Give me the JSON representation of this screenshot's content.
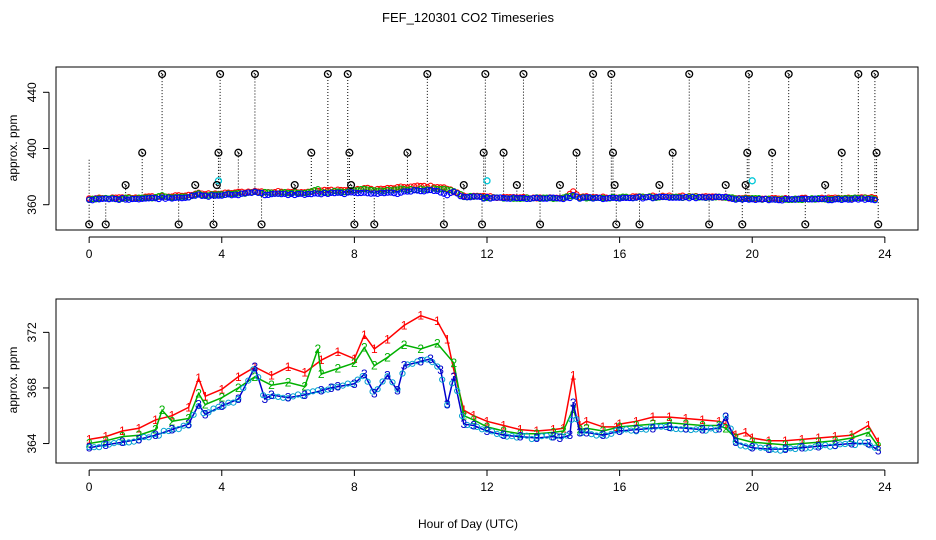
{
  "title": "FEF_120301  CO2 Timeseries",
  "chart_data": [
    {
      "type": "scatter",
      "panel": "top",
      "ylabel": "approx. ppm",
      "xlim": [
        -1,
        25
      ],
      "ylim": [
        342,
        458
      ],
      "xticks": [
        0,
        4,
        8,
        12,
        16,
        20,
        24
      ],
      "yticks": [
        360,
        400,
        440
      ],
      "colors": {
        "series1": "#ff0000",
        "series2": "#00b000",
        "series3": "#0000ff",
        "alt": "#00c8d8",
        "flag": "#000000"
      },
      "spikes": [
        {
          "x": 0.0,
          "y": 346,
          "base": 392
        },
        {
          "x": 0.5,
          "y": 346,
          "base": 363
        },
        {
          "x": 1.1,
          "y": 374,
          "base": 364
        },
        {
          "x": 1.6,
          "y": 397,
          "base": 364
        },
        {
          "x": 2.2,
          "y": 453,
          "base": 364
        },
        {
          "x": 2.7,
          "y": 346,
          "base": 365
        },
        {
          "x": 3.2,
          "y": 374,
          "base": 365
        },
        {
          "x": 3.75,
          "y": 346,
          "base": 367
        },
        {
          "x": 3.85,
          "y": 374,
          "base": 367
        },
        {
          "x": 3.9,
          "y": 397,
          "base": 367
        },
        {
          "x": 3.95,
          "y": 453,
          "base": 367
        },
        {
          "x": 4.5,
          "y": 397,
          "base": 368
        },
        {
          "x": 5.0,
          "y": 453,
          "base": 368
        },
        {
          "x": 5.2,
          "y": 346,
          "base": 368
        },
        {
          "x": 6.2,
          "y": 374,
          "base": 368
        },
        {
          "x": 6.7,
          "y": 397,
          "base": 369
        },
        {
          "x": 7.2,
          "y": 453,
          "base": 369
        },
        {
          "x": 7.8,
          "y": 453,
          "base": 369
        },
        {
          "x": 7.85,
          "y": 397,
          "base": 369
        },
        {
          "x": 7.9,
          "y": 374,
          "base": 369
        },
        {
          "x": 8.0,
          "y": 346,
          "base": 369
        },
        {
          "x": 8.6,
          "y": 346,
          "base": 371
        },
        {
          "x": 9.6,
          "y": 397,
          "base": 372
        },
        {
          "x": 10.2,
          "y": 453,
          "base": 372
        },
        {
          "x": 10.7,
          "y": 346,
          "base": 371
        },
        {
          "x": 11.3,
          "y": 374,
          "base": 366
        },
        {
          "x": 11.85,
          "y": 346,
          "base": 365
        },
        {
          "x": 11.9,
          "y": 397,
          "base": 365
        },
        {
          "x": 11.95,
          "y": 453,
          "base": 365
        },
        {
          "x": 12.5,
          "y": 397,
          "base": 365
        },
        {
          "x": 12.9,
          "y": 374,
          "base": 365
        },
        {
          "x": 13.1,
          "y": 453,
          "base": 365
        },
        {
          "x": 13.6,
          "y": 346,
          "base": 365
        },
        {
          "x": 14.2,
          "y": 374,
          "base": 365
        },
        {
          "x": 14.7,
          "y": 397,
          "base": 365
        },
        {
          "x": 15.2,
          "y": 453,
          "base": 365
        },
        {
          "x": 15.75,
          "y": 453,
          "base": 365
        },
        {
          "x": 15.8,
          "y": 397,
          "base": 365
        },
        {
          "x": 15.85,
          "y": 374,
          "base": 365
        },
        {
          "x": 15.9,
          "y": 346,
          "base": 365
        },
        {
          "x": 16.6,
          "y": 346,
          "base": 365
        },
        {
          "x": 17.2,
          "y": 374,
          "base": 365
        },
        {
          "x": 17.6,
          "y": 397,
          "base": 365
        },
        {
          "x": 18.1,
          "y": 453,
          "base": 365
        },
        {
          "x": 18.7,
          "y": 346,
          "base": 365
        },
        {
          "x": 19.2,
          "y": 374,
          "base": 365
        },
        {
          "x": 19.7,
          "y": 346,
          "base": 364
        },
        {
          "x": 19.8,
          "y": 374,
          "base": 364
        },
        {
          "x": 19.85,
          "y": 397,
          "base": 364
        },
        {
          "x": 19.9,
          "y": 453,
          "base": 364
        },
        {
          "x": 20.6,
          "y": 397,
          "base": 364
        },
        {
          "x": 21.1,
          "y": 453,
          "base": 364
        },
        {
          "x": 21.6,
          "y": 346,
          "base": 364
        },
        {
          "x": 22.2,
          "y": 374,
          "base": 364
        },
        {
          "x": 22.7,
          "y": 397,
          "base": 364
        },
        {
          "x": 23.2,
          "y": 453,
          "base": 364
        },
        {
          "x": 23.7,
          "y": 453,
          "base": 364
        },
        {
          "x": 23.75,
          "y": 397,
          "base": 364
        },
        {
          "x": 23.8,
          "y": 346,
          "base": 364
        }
      ],
      "alt_points": [
        {
          "x": 3.9,
          "y": 377
        },
        {
          "x": 12.0,
          "y": 377
        },
        {
          "x": 20.0,
          "y": 377
        }
      ]
    },
    {
      "type": "line",
      "panel": "bottom",
      "xlabel": "Hour of Day (UTC)",
      "ylabel": "approx. ppm",
      "xlim": [
        -1,
        25
      ],
      "ylim": [
        362.6,
        374.4
      ],
      "xticks": [
        0,
        4,
        8,
        12,
        16,
        20,
        24
      ],
      "yticks": [
        364,
        368,
        372
      ],
      "series": [
        {
          "name": "1",
          "color": "#ff0000",
          "x": [
            0.0,
            0.5,
            1.0,
            1.5,
            2.0,
            2.5,
            3.0,
            3.3,
            3.5,
            4.0,
            4.5,
            5.0,
            5.5,
            6.0,
            6.5,
            7.0,
            7.5,
            8.0,
            8.3,
            8.6,
            9.0,
            9.5,
            10.0,
            10.5,
            10.8,
            11.0,
            11.3,
            11.6,
            12.0,
            12.5,
            13.0,
            13.5,
            14.0,
            14.3,
            14.6,
            14.8,
            15.0,
            15.5,
            15.9,
            16.0,
            16.5,
            17.0,
            17.5,
            18.0,
            18.5,
            19.0,
            19.2,
            19.5,
            19.8,
            20.0,
            20.5,
            21.0,
            21.5,
            22.0,
            22.5,
            23.0,
            23.5,
            23.8
          ],
          "y": [
            364.3,
            364.5,
            364.9,
            365.1,
            365.7,
            366.0,
            366.6,
            368.7,
            367.4,
            367.9,
            368.8,
            369.5,
            368.9,
            369.5,
            369.1,
            370.0,
            370.6,
            370.1,
            371.8,
            370.8,
            371.5,
            372.5,
            373.2,
            372.8,
            371.5,
            369.3,
            366.4,
            366.0,
            365.6,
            365.3,
            365.0,
            364.9,
            365.0,
            365.1,
            368.9,
            365.3,
            365.6,
            365.2,
            365.2,
            365.4,
            365.6,
            365.9,
            365.9,
            365.8,
            365.7,
            365.6,
            365.4,
            364.6,
            364.8,
            364.4,
            364.2,
            364.2,
            364.3,
            364.4,
            364.5,
            364.6,
            365.3,
            364.1
          ]
        },
        {
          "name": "2",
          "color": "#00b000",
          "x": [
            0.0,
            0.5,
            1.0,
            1.5,
            2.0,
            2.2,
            2.5,
            3.0,
            3.3,
            3.5,
            4.0,
            4.5,
            5.0,
            5.5,
            6.0,
            6.5,
            6.9,
            7.0,
            7.5,
            8.0,
            8.3,
            8.6,
            9.0,
            9.5,
            10.0,
            10.5,
            11.0,
            11.3,
            11.6,
            12.0,
            12.5,
            13.0,
            13.5,
            14.0,
            14.3,
            14.6,
            14.8,
            15.0,
            15.5,
            16.0,
            16.5,
            17.0,
            17.5,
            18.0,
            18.5,
            19.0,
            19.2,
            19.5,
            20.0,
            20.5,
            21.0,
            21.5,
            22.0,
            22.5,
            23.0,
            23.5,
            23.8
          ],
          "y": [
            364.0,
            364.2,
            364.5,
            364.6,
            365.0,
            366.4,
            365.6,
            365.8,
            367.6,
            366.8,
            367.3,
            368.0,
            368.8,
            368.2,
            368.4,
            368.1,
            370.8,
            369.0,
            369.4,
            369.8,
            370.9,
            369.6,
            370.2,
            371.1,
            370.8,
            371.2,
            369.8,
            366.0,
            365.7,
            365.2,
            364.9,
            364.7,
            364.7,
            364.8,
            364.9,
            366.5,
            365.0,
            365.1,
            364.9,
            365.2,
            365.3,
            365.4,
            365.5,
            365.4,
            365.3,
            365.3,
            365.1,
            364.4,
            364.1,
            364.0,
            363.9,
            364.0,
            364.1,
            364.2,
            364.4,
            364.8,
            363.8
          ]
        },
        {
          "name": "3",
          "color": "#0000cc",
          "x": [
            0.0,
            0.5,
            1.0,
            1.5,
            2.0,
            2.5,
            3.0,
            3.3,
            3.5,
            4.0,
            4.5,
            5.0,
            5.3,
            5.5,
            6.0,
            6.5,
            7.0,
            7.3,
            7.5,
            8.0,
            8.3,
            8.6,
            9.0,
            9.3,
            9.5,
            10.0,
            10.3,
            10.6,
            10.8,
            11.0,
            11.3,
            11.6,
            12.0,
            12.5,
            13.0,
            13.5,
            14.0,
            14.2,
            14.5,
            14.6,
            14.8,
            15.0,
            15.5,
            16.0,
            16.5,
            17.0,
            17.5,
            18.0,
            18.5,
            19.0,
            19.2,
            19.5,
            20.0,
            20.5,
            21.0,
            21.5,
            22.0,
            22.5,
            23.0,
            23.5,
            23.8
          ],
          "y": [
            363.7,
            363.9,
            364.1,
            364.3,
            364.6,
            365.0,
            365.4,
            366.8,
            366.1,
            366.7,
            367.2,
            369.5,
            367.2,
            367.5,
            367.3,
            367.5,
            367.8,
            368.0,
            368.1,
            368.3,
            369.0,
            367.6,
            368.9,
            367.8,
            369.6,
            369.9,
            370.1,
            369.3,
            366.8,
            368.8,
            365.4,
            365.3,
            364.9,
            364.6,
            364.5,
            364.4,
            364.5,
            364.4,
            364.6,
            366.9,
            364.8,
            364.8,
            364.6,
            364.9,
            365.0,
            365.1,
            365.2,
            365.1,
            365.0,
            365.1,
            365.9,
            364.1,
            363.7,
            363.6,
            363.6,
            363.7,
            363.8,
            363.9,
            364.0,
            364.0,
            363.5
          ]
        }
      ]
    }
  ]
}
